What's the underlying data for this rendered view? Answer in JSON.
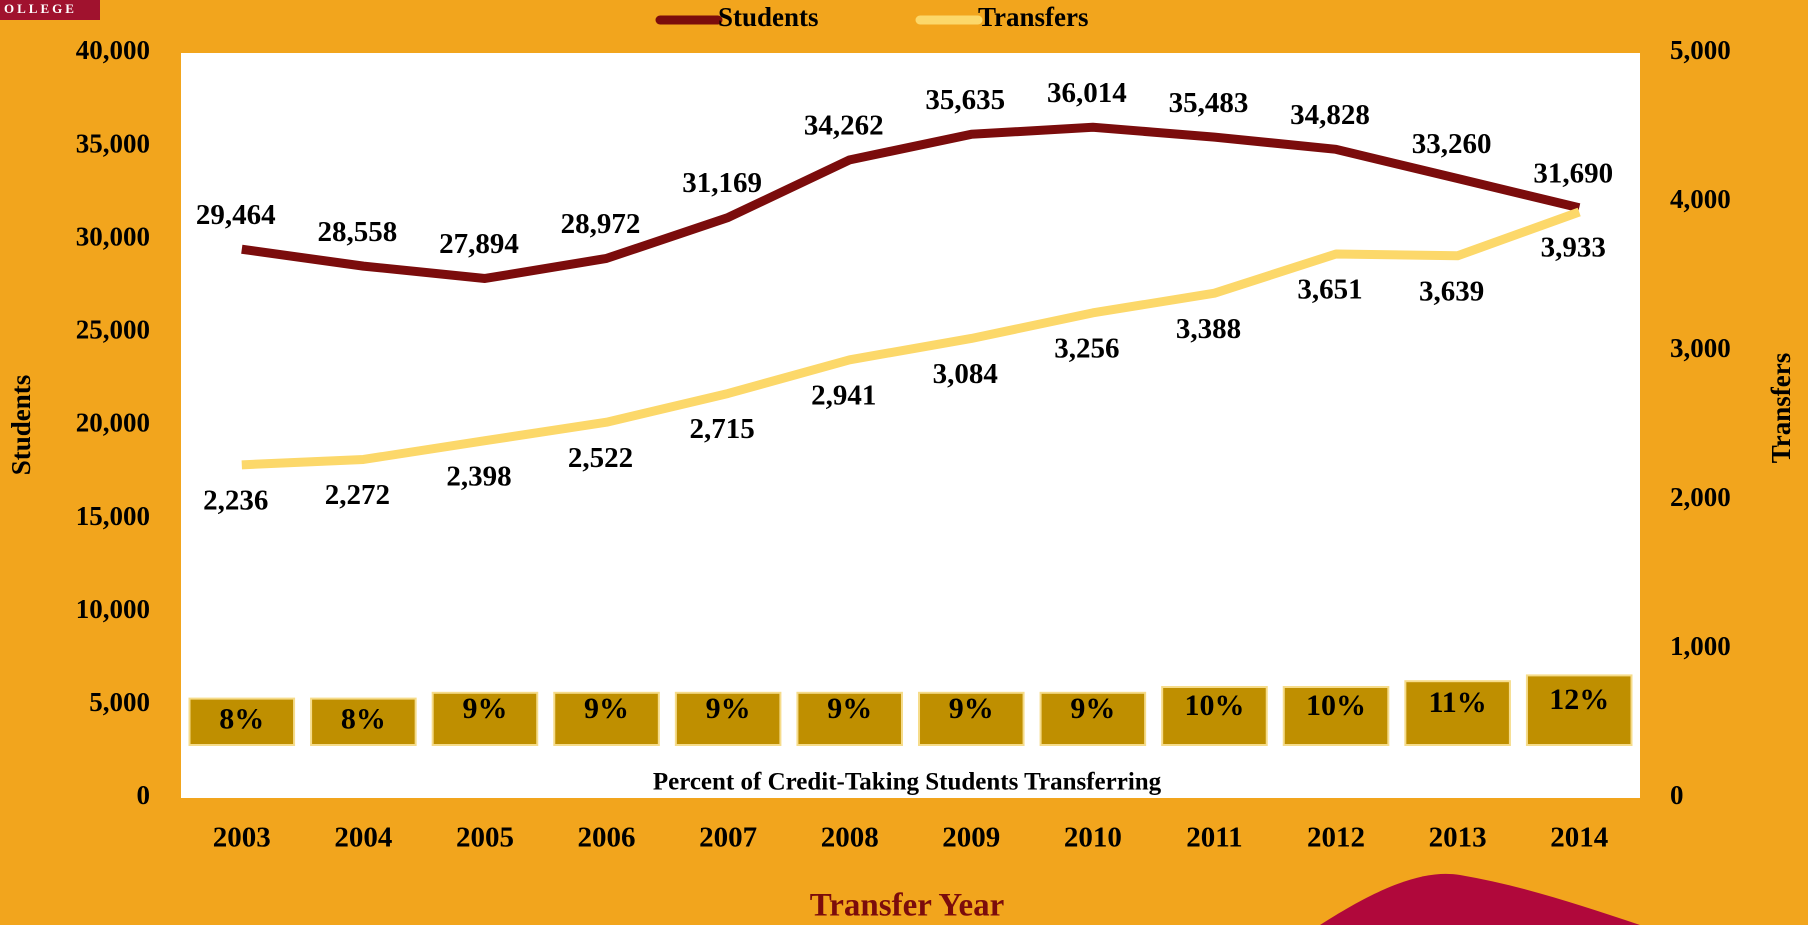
{
  "logo_text": "OLLEGE",
  "chart_data": {
    "type": "line",
    "x_label": "Transfer Year",
    "y_label": "Students",
    "y2_label": "Transfers",
    "categories": [
      "2003",
      "2004",
      "2005",
      "2006",
      "2007",
      "2008",
      "2009",
      "2010",
      "2011",
      "2012",
      "2013",
      "2014"
    ],
    "series": [
      {
        "name": "Students",
        "color": "#7b0c0c",
        "values": [
          29464,
          28558,
          27894,
          28972,
          31169,
          34262,
          35635,
          36014,
          35483,
          34828,
          33260,
          31690
        ],
        "value_labels": [
          "29,464",
          "28,558",
          "27,894",
          "28,972",
          "31,169",
          "34,262",
          "35,635",
          "36,014",
          "35,483",
          "34,828",
          "33,260",
          "31,690"
        ]
      },
      {
        "name": "Transfers",
        "color": "#fcd86a",
        "axis": "y2",
        "values": [
          2236,
          2272,
          2398,
          2522,
          2715,
          2941,
          3084,
          3256,
          3388,
          3651,
          3639,
          3933
        ],
        "value_labels": [
          "2,236",
          "2,272",
          "2,398",
          "2,522",
          "2,715",
          "2,941",
          "3,084",
          "3,256",
          "3,388",
          "3,651",
          "3,639",
          "3,933"
        ]
      }
    ],
    "ylim": [
      0,
      40000
    ],
    "yticks": [
      0,
      {
        "value": 5000,
        "label": "5,000"
      },
      {
        "value": 10000,
        "label": "10,000"
      },
      {
        "value": 15000,
        "label": "15,000"
      },
      {
        "value": 20000,
        "label": "20,000"
      },
      {
        "value": 25000,
        "label": "25,000"
      },
      {
        "value": 30000,
        "label": "30,000"
      },
      {
        "value": 35000,
        "label": "35,000"
      },
      {
        "value": 40000,
        "label": "40,000"
      }
    ],
    "y2lim": [
      0,
      5000
    ],
    "y2ticks": [
      0,
      {
        "value": 1000,
        "label": "1,000"
      },
      {
        "value": 2000,
        "label": "2,000"
      },
      {
        "value": 3000,
        "label": "3,000"
      },
      {
        "value": 4000,
        "label": "4,000"
      },
      {
        "value": 5000,
        "label": "5,000"
      }
    ],
    "percent_bars": {
      "title": "Percent of Credit-Taking Students Transferring",
      "color": "#bf8f00",
      "values": [
        8,
        8,
        9,
        9,
        9,
        9,
        9,
        9,
        10,
        10,
        11,
        12
      ],
      "value_labels": [
        "8%",
        "8%",
        "9%",
        "9%",
        "9%",
        "9%",
        "9%",
        "9%",
        "10%",
        "10%",
        "11%",
        "12%"
      ]
    },
    "legend": "top"
  }
}
